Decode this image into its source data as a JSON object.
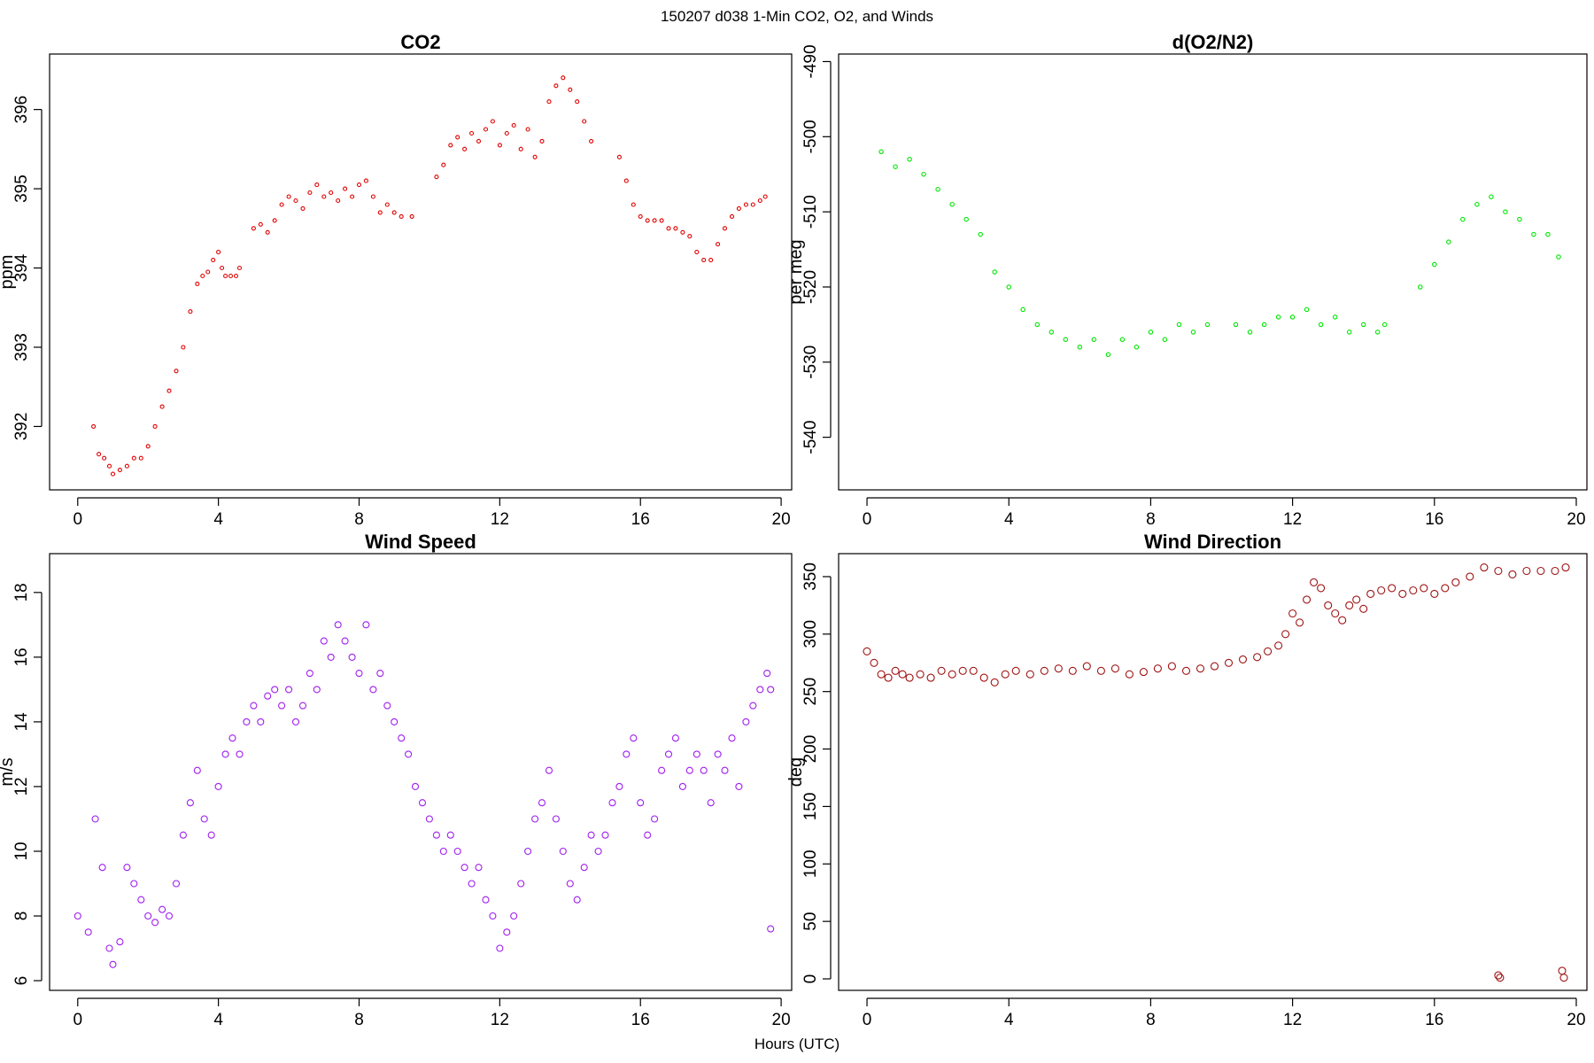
{
  "figure": {
    "title": "150207   d038   1-Min CO2, O2, and Winds",
    "xlabel": "Hours (UTC)"
  },
  "chart_data": [
    {
      "id": "co2",
      "type": "scatter",
      "title": "CO2",
      "xlabel": "",
      "ylabel": "ppm",
      "xlim": [
        -0.8,
        20.3
      ],
      "ylim": [
        391.2,
        396.7
      ],
      "xticks": [
        0,
        4,
        8,
        12,
        16,
        20
      ],
      "yticks": [
        392,
        393,
        394,
        395,
        396
      ],
      "color": "#e00000",
      "segments": [
        {
          "x": [
            0.45,
            0.6,
            0.75,
            0.9,
            1.0,
            1.2,
            1.4,
            1.6,
            1.8,
            2.0,
            2.2,
            2.4,
            2.6,
            2.8,
            3.0,
            3.2,
            3.4,
            3.55,
            3.7,
            3.85,
            4.0,
            4.1,
            4.2,
            4.35,
            4.5,
            4.6
          ],
          "y": [
            392.0,
            391.65,
            391.6,
            391.5,
            391.4,
            391.45,
            391.5,
            391.6,
            391.6,
            391.75,
            392.0,
            392.25,
            392.45,
            392.7,
            393.0,
            393.45,
            393.8,
            393.9,
            393.95,
            394.1,
            394.2,
            394.0,
            393.9,
            393.9,
            393.9,
            394.0
          ]
        },
        {
          "x": [
            5.0,
            5.2,
            5.4,
            5.6,
            5.8,
            6.0,
            6.2,
            6.4,
            6.6,
            6.8,
            7.0,
            7.2,
            7.4,
            7.6,
            7.8,
            8.0,
            8.2,
            8.4,
            8.6,
            8.8,
            9.0,
            9.2,
            9.5
          ],
          "y": [
            394.5,
            394.55,
            394.45,
            394.6,
            394.8,
            394.9,
            394.85,
            394.75,
            394.95,
            395.05,
            394.9,
            394.95,
            394.85,
            395.0,
            394.9,
            395.05,
            395.1,
            394.9,
            394.7,
            394.8,
            394.7,
            394.65,
            394.65
          ]
        },
        {
          "x": [
            10.2,
            10.4,
            10.6,
            10.8,
            11.0,
            11.2,
            11.4,
            11.6,
            11.8,
            12.0,
            12.2,
            12.4,
            12.6,
            12.8,
            13.0,
            13.2,
            13.4,
            13.6,
            13.8,
            14.0,
            14.2,
            14.4,
            14.6
          ],
          "y": [
            395.15,
            395.3,
            395.55,
            395.65,
            395.5,
            395.7,
            395.6,
            395.75,
            395.85,
            395.55,
            395.7,
            395.8,
            395.5,
            395.75,
            395.4,
            395.6,
            396.1,
            396.3,
            396.4,
            396.25,
            396.1,
            395.85,
            395.6
          ]
        },
        {
          "x": [
            15.4,
            15.6,
            15.8,
            16.0,
            16.2,
            16.4,
            16.6,
            16.8,
            17.0,
            17.2,
            17.4,
            17.6,
            17.8,
            18.0,
            18.2,
            18.4,
            18.6,
            18.8,
            19.0,
            19.2,
            19.4,
            19.55
          ],
          "y": [
            395.4,
            395.1,
            394.8,
            394.65,
            394.6,
            394.6,
            394.6,
            394.5,
            394.5,
            394.45,
            394.4,
            394.2,
            394.1,
            394.1,
            394.3,
            394.5,
            394.65,
            394.75,
            394.8,
            394.8,
            394.85,
            394.9
          ]
        }
      ]
    },
    {
      "id": "o2",
      "type": "scatter",
      "title": "d(O2/N2)",
      "xlabel": "",
      "ylabel": "per meg",
      "xlim": [
        -0.8,
        20.3
      ],
      "ylim": [
        -547,
        -489
      ],
      "xticks": [
        0,
        4,
        8,
        12,
        16,
        20
      ],
      "yticks": [
        -540,
        -530,
        -520,
        -510,
        -500,
        -490
      ],
      "color": "#00e600",
      "segments": [
        {
          "x": [
            0.4,
            0.8,
            1.2,
            1.6,
            2.0,
            2.4,
            2.8,
            3.2,
            3.6,
            4.0,
            4.4,
            4.8,
            5.2,
            5.6,
            6.0,
            6.4,
            6.8,
            7.2,
            7.6,
            8.0,
            8.4,
            8.8,
            9.2,
            9.6
          ],
          "y": [
            -502,
            -504,
            -503,
            -505,
            -507,
            -509,
            -511,
            -513,
            -518,
            -520,
            -523,
            -525,
            -526,
            -527,
            -528,
            -527,
            -529,
            -527,
            -528,
            -526,
            -527,
            -525,
            -526,
            -525
          ]
        },
        {
          "x": [
            10.4,
            10.8,
            11.2,
            11.6,
            12.0,
            12.4,
            12.8,
            13.2,
            13.6,
            14.0,
            14.4,
            14.6
          ],
          "y": [
            -525,
            -526,
            -525,
            -524,
            -524,
            -523,
            -525,
            -524,
            -526,
            -525,
            -526,
            -525
          ]
        },
        {
          "x": [
            15.6,
            16.0,
            16.4,
            16.8,
            17.2,
            17.6,
            18.0,
            18.4,
            18.8,
            19.2,
            19.5
          ],
          "y": [
            -520,
            -517,
            -514,
            -511,
            -509,
            -508,
            -510,
            -511,
            -513,
            -513,
            -516
          ]
        }
      ]
    },
    {
      "id": "wind-speed",
      "type": "scatter",
      "title": "Wind Speed",
      "xlabel": "",
      "ylabel": "m/s",
      "xlim": [
        -0.8,
        20.3
      ],
      "ylim": [
        5.7,
        19.2
      ],
      "xticks": [
        0,
        4,
        8,
        12,
        16,
        20
      ],
      "yticks": [
        6,
        8,
        10,
        12,
        14,
        16,
        18
      ],
      "color": "#a020f0",
      "segments": [
        {
          "x": [
            0.0,
            0.3,
            0.5,
            0.7,
            0.9,
            1.0,
            1.2,
            1.4,
            1.6,
            1.8,
            2.0,
            2.2,
            2.4,
            2.6,
            2.8,
            3.0,
            3.2,
            3.4,
            3.6,
            3.8,
            4.0,
            4.2,
            4.4,
            4.6,
            4.8,
            5.0,
            5.2,
            5.4,
            5.6,
            5.8,
            6.0,
            6.2,
            6.4,
            6.6,
            6.8,
            7.0,
            7.2,
            7.4,
            7.6,
            7.8,
            8.0,
            8.2,
            8.4,
            8.6,
            8.8,
            9.0,
            9.2,
            9.4,
            9.6,
            9.8,
            10.0,
            10.2,
            10.4,
            10.6,
            10.8,
            11.0,
            11.2,
            11.4,
            11.6,
            11.8,
            12.0,
            12.2,
            12.4,
            12.6,
            12.8,
            13.0,
            13.2,
            13.4,
            13.6,
            13.8,
            14.0,
            14.2,
            14.4,
            14.6,
            14.8,
            15.0,
            15.2,
            15.4,
            15.6,
            15.8,
            16.0,
            16.2,
            16.4,
            16.6,
            16.8,
            17.0,
            17.2,
            17.4,
            17.6,
            17.8,
            18.0,
            18.2,
            18.4,
            18.6,
            18.8,
            19.0,
            19.2,
            19.4,
            19.6,
            19.7
          ],
          "y": [
            8.0,
            7.5,
            11.0,
            9.5,
            7.0,
            6.5,
            7.2,
            9.5,
            9.0,
            8.5,
            8.0,
            7.8,
            8.2,
            8.0,
            9.0,
            10.5,
            11.5,
            12.5,
            11.0,
            10.5,
            12.0,
            13.0,
            13.5,
            13.0,
            14.0,
            14.5,
            14.0,
            14.8,
            15.0,
            14.5,
            15.0,
            14.0,
            14.5,
            15.5,
            15.0,
            16.5,
            16.0,
            17.0,
            16.5,
            16.0,
            15.5,
            17.0,
            15.0,
            15.5,
            14.5,
            14.0,
            13.5,
            13.0,
            12.0,
            11.5,
            11.0,
            10.5,
            10.0,
            10.5,
            10.0,
            9.5,
            9.0,
            9.5,
            8.5,
            8.0,
            7.0,
            7.5,
            8.0,
            9.0,
            10.0,
            11.0,
            11.5,
            12.5,
            11.0,
            10.0,
            9.0,
            8.5,
            9.5,
            10.5,
            10.0,
            10.5,
            11.5,
            12.0,
            13.0,
            13.5,
            11.5,
            10.5,
            11.0,
            12.5,
            13.0,
            13.5,
            12.0,
            12.5,
            13.0,
            12.5,
            11.5,
            13.0,
            12.5,
            13.5,
            12.0,
            14.0,
            14.5,
            15.0,
            15.5,
            15.0
          ]
        },
        {
          "x": [
            19.7
          ],
          "y": [
            7.6
          ]
        }
      ]
    },
    {
      "id": "wind-direction",
      "type": "scatter",
      "title": "Wind Direction",
      "xlabel": "",
      "ylabel": "deg",
      "xlim": [
        -0.8,
        20.3
      ],
      "ylim": [
        -10,
        370
      ],
      "xticks": [
        0,
        4,
        8,
        12,
        16,
        20
      ],
      "yticks": [
        0,
        50,
        100,
        150,
        200,
        250,
        300,
        350
      ],
      "color": "#a01414",
      "segments": [
        {
          "x": [
            0.0,
            0.2,
            0.4,
            0.6,
            0.8,
            1.0,
            1.2,
            1.5,
            1.8,
            2.1,
            2.4,
            2.7,
            3.0,
            3.3,
            3.6,
            3.9,
            4.2,
            4.6,
            5.0,
            5.4,
            5.8,
            6.2,
            6.6,
            7.0,
            7.4,
            7.8,
            8.2,
            8.6,
            9.0,
            9.4,
            9.8,
            10.2,
            10.6,
            11.0,
            11.3,
            11.6,
            11.8,
            12.0,
            12.2,
            12.4,
            12.6,
            12.8,
            13.0,
            13.2,
            13.4,
            13.6,
            13.8,
            14.0,
            14.2,
            14.5,
            14.8,
            15.1,
            15.4,
            15.7,
            16.0,
            16.3,
            16.6,
            17.0,
            17.4,
            17.8,
            18.2,
            18.6,
            19.0,
            19.4,
            19.7
          ],
          "y": [
            285,
            275,
            265,
            262,
            268,
            265,
            262,
            265,
            262,
            268,
            265,
            268,
            268,
            262,
            258,
            265,
            268,
            265,
            268,
            270,
            268,
            272,
            268,
            270,
            265,
            267,
            270,
            272,
            268,
            270,
            272,
            275,
            278,
            280,
            285,
            290,
            300,
            318,
            310,
            330,
            345,
            340,
            325,
            318,
            312,
            325,
            330,
            322,
            335,
            338,
            340,
            335,
            338,
            340,
            335,
            340,
            345,
            350,
            358,
            355,
            352,
            355,
            355,
            355,
            358
          ]
        },
        {
          "x": [
            17.8,
            17.85,
            19.6,
            19.65
          ],
          "y": [
            3,
            1,
            7,
            1
          ]
        }
      ]
    }
  ]
}
